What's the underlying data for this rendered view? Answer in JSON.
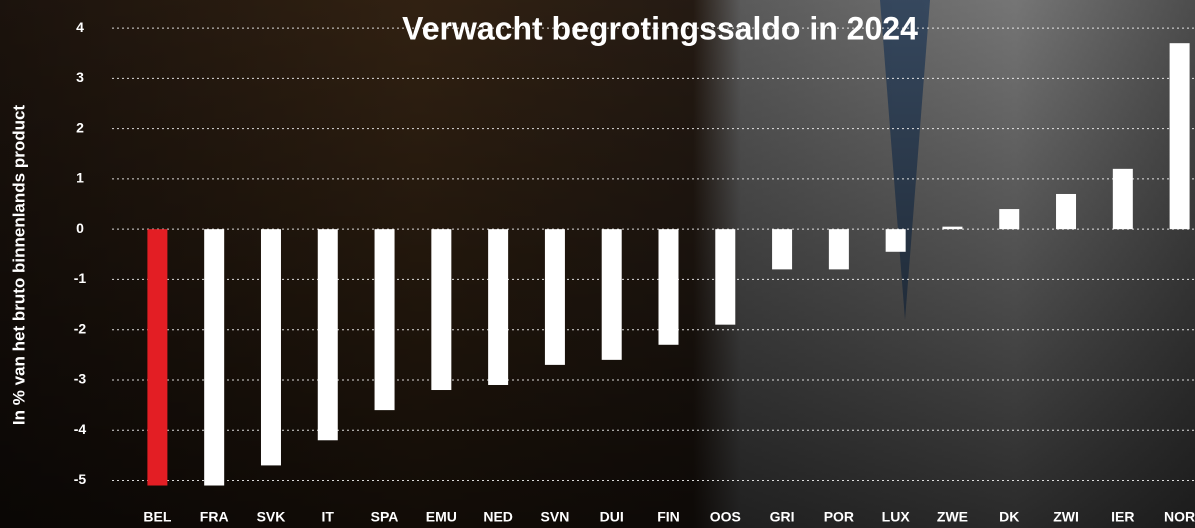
{
  "chart_data": {
    "type": "bar",
    "title": "Verwacht begrotingssaldo in 2024",
    "y_label": "In % van het bruto binnenlands product",
    "categories": [
      "BEL",
      "FRA",
      "SVK",
      "IT",
      "SPA",
      "EMU",
      "NED",
      "SVN",
      "DUI",
      "FIN",
      "OOS",
      "GRI",
      "POR",
      "LUX",
      "ZWE",
      "DK",
      "ZWI",
      "IER",
      "NOR"
    ],
    "values": [
      -5.1,
      -5.1,
      -4.7,
      -4.2,
      -3.6,
      -3.2,
      -3.1,
      -2.7,
      -2.6,
      -2.3,
      -1.9,
      -0.8,
      -0.8,
      -0.45,
      0.05,
      0.4,
      0.7,
      1.2,
      3.7
    ],
    "colors": [
      "#e31e24",
      "#ffffff",
      "#ffffff",
      "#ffffff",
      "#ffffff",
      "#ffffff",
      "#ffffff",
      "#ffffff",
      "#ffffff",
      "#ffffff",
      "#ffffff",
      "#ffffff",
      "#ffffff",
      "#ffffff",
      "#ffffff",
      "#ffffff",
      "#ffffff",
      "#ffffff",
      "#ffffff"
    ],
    "ylim": [
      -5.4,
      4.4
    ],
    "yticks": [
      -5,
      -4,
      -3,
      -2,
      -1,
      0,
      1,
      2,
      3,
      4
    ],
    "grid": true
  }
}
